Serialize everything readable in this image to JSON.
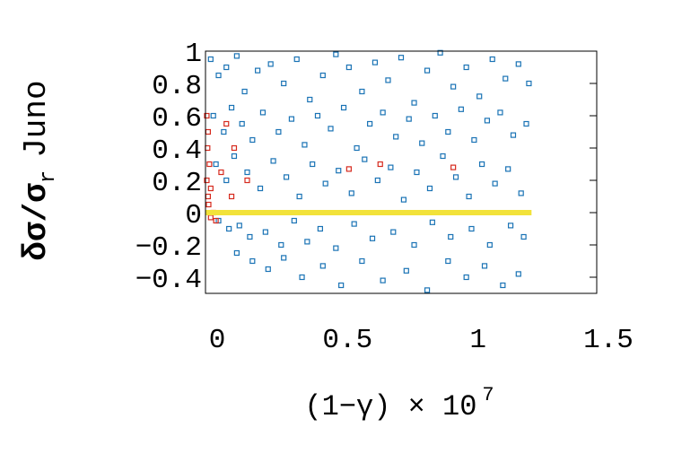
{
  "chart_data": {
    "type": "scatter",
    "ylabel": {
      "main": "δσ/σ",
      "sub": "r",
      "suffix": "Juno"
    },
    "xlabel": {
      "main": "(1−γ) × 10",
      "sup": "7"
    },
    "xlim": [
      0,
      1.5
    ],
    "xticks": [
      0,
      0.5,
      1,
      1.5
    ],
    "ylim": [
      -0.5,
      1
    ],
    "yticks": [
      {
        "value": -0.4,
        "label": "−0.4"
      },
      {
        "value": -0.2,
        "label": "−0.2"
      },
      0,
      0.2,
      0.4,
      0.6,
      0.8,
      1
    ],
    "series": [
      {
        "color": "#1a73b5",
        "marker": "square",
        "x": [
          0.02,
          0.05,
          0.08,
          0.12,
          0.15,
          0.2,
          0.25,
          0.3,
          0.35,
          0.4,
          0.45,
          0.5,
          0.55,
          0.6,
          0.65,
          0.7,
          0.75,
          0.8,
          0.85,
          0.9,
          0.95,
          1.0,
          1.05,
          1.1,
          1.15,
          1.2,
          1.24,
          0.03,
          0.07,
          0.1,
          0.14,
          0.18,
          0.22,
          0.28,
          0.33,
          0.38,
          0.43,
          0.48,
          0.53,
          0.58,
          0.63,
          0.68,
          0.73,
          0.78,
          0.83,
          0.88,
          0.93,
          0.98,
          1.03,
          1.08,
          1.13,
          1.18,
          1.23,
          0.04,
          0.08,
          0.11,
          0.16,
          0.21,
          0.26,
          0.31,
          0.36,
          0.41,
          0.46,
          0.51,
          0.56,
          0.61,
          0.66,
          0.71,
          0.76,
          0.81,
          0.86,
          0.91,
          0.96,
          1.01,
          1.06,
          1.11,
          1.16,
          1.21,
          0.05,
          0.09,
          0.13,
          0.17,
          0.23,
          0.29,
          0.34,
          0.39,
          0.44,
          0.5,
          0.57,
          0.64,
          0.72,
          0.8,
          0.87,
          0.94,
          1.02,
          1.09,
          1.17,
          1.22,
          0.12,
          0.18,
          0.24,
          0.3,
          0.37,
          0.45,
          0.52,
          0.6,
          0.68,
          0.77,
          0.85,
          0.93,
          1.0,
          1.07,
          1.14,
          1.2
        ],
        "values": [
          0.95,
          0.85,
          0.9,
          0.97,
          0.75,
          0.88,
          0.92,
          0.8,
          0.95,
          0.7,
          0.85,
          0.98,
          0.9,
          0.75,
          0.93,
          0.82,
          0.96,
          0.68,
          0.88,
          0.99,
          0.78,
          0.9,
          0.72,
          0.95,
          0.83,
          0.92,
          0.8,
          0.6,
          0.5,
          0.65,
          0.55,
          0.45,
          0.62,
          0.5,
          0.58,
          0.42,
          0.6,
          0.52,
          0.65,
          0.4,
          0.55,
          0.62,
          0.47,
          0.58,
          0.43,
          0.6,
          0.5,
          0.64,
          0.45,
          0.57,
          0.62,
          0.48,
          0.55,
          0.3,
          0.2,
          0.35,
          0.25,
          0.15,
          0.32,
          0.22,
          0.1,
          0.3,
          0.18,
          0.26,
          0.12,
          0.33,
          0.2,
          0.28,
          0.08,
          0.25,
          0.15,
          0.35,
          0.22,
          0.1,
          0.3,
          0.18,
          0.27,
          0.12,
          -0.05,
          -0.1,
          -0.08,
          -0.15,
          -0.12,
          -0.2,
          -0.05,
          -0.18,
          -0.1,
          -0.22,
          -0.07,
          -0.16,
          -0.12,
          -0.2,
          -0.06,
          -0.15,
          -0.1,
          -0.2,
          -0.08,
          -0.15,
          -0.25,
          -0.3,
          -0.35,
          -0.28,
          -0.4,
          -0.33,
          -0.45,
          -0.3,
          -0.42,
          -0.36,
          -0.48,
          -0.3,
          -0.4,
          -0.33,
          -0.45,
          -0.38
        ]
      },
      {
        "color": "#d62a1e",
        "marker": "square",
        "x": [
          0.005,
          0.01,
          0.008,
          0.015,
          0.005,
          0.02,
          0.01,
          0.012,
          0.03,
          0.04,
          0.02,
          0.06,
          0.1,
          0.08,
          0.16,
          0.11,
          0.55,
          0.95,
          0.67
        ],
        "values": [
          0.6,
          0.5,
          0.4,
          0.3,
          0.2,
          0.15,
          0.1,
          0.05,
          0.0,
          -0.05,
          -0.03,
          0.25,
          0.1,
          0.55,
          0.2,
          0.4,
          0.27,
          0.28,
          0.3
        ]
      },
      {
        "color": "#f2e23a",
        "marker": "line",
        "x": [
          0,
          1.25
        ],
        "values": [
          0,
          0
        ]
      }
    ]
  }
}
